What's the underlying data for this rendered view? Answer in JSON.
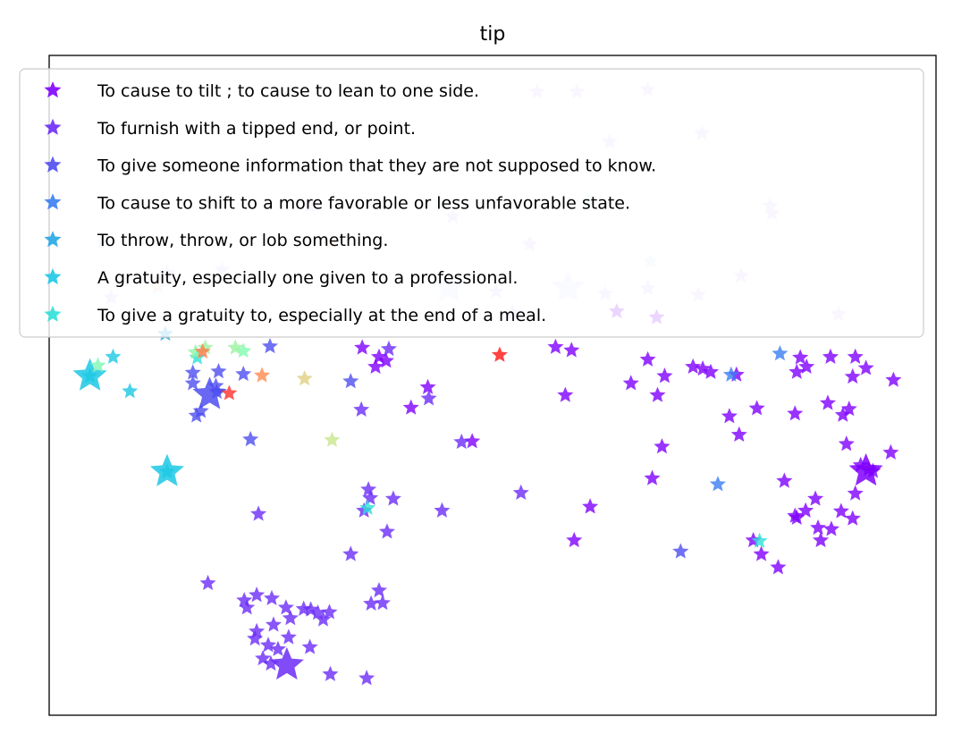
{
  "chart_data": {
    "type": "scatter",
    "title": "tip",
    "xlabel": "",
    "ylabel": "",
    "axis_ticks": false,
    "grid": false,
    "legend_placement": "top",
    "xlim": [
      0,
      100
    ],
    "ylim": [
      0,
      100
    ],
    "series": [
      {
        "name": "To cause to tilt ; to cause to lean to one side.",
        "color": "#8000ff",
        "points": [
          [
            35.3,
            55.7
          ],
          [
            37.2,
            54.3
          ],
          [
            36.8,
            52.8
          ],
          [
            38.0,
            53.7
          ],
          [
            42.7,
            49.7
          ],
          [
            40.8,
            46.6
          ],
          [
            47.7,
            41.5
          ],
          [
            58.9,
            55.3
          ],
          [
            58.2,
            48.5
          ],
          [
            67.5,
            53.9
          ],
          [
            65.6,
            50.3
          ],
          [
            69.4,
            51.4
          ],
          [
            68.6,
            48.5
          ],
          [
            69.1,
            40.7
          ],
          [
            68.0,
            35.9
          ],
          [
            72.6,
            52.8
          ],
          [
            73.7,
            52.5
          ],
          [
            74.6,
            52.0
          ],
          [
            77.5,
            51.6
          ],
          [
            77.8,
            42.5
          ],
          [
            76.7,
            45.3
          ],
          [
            79.8,
            46.5
          ],
          [
            84.3,
            52.0
          ],
          [
            85.4,
            52.8
          ],
          [
            84.7,
            54.2
          ],
          [
            88.1,
            54.3
          ],
          [
            90.9,
            54.3
          ],
          [
            92.1,
            52.6
          ],
          [
            95.2,
            50.8
          ],
          [
            84.1,
            45.7
          ],
          [
            87.8,
            47.3
          ],
          [
            90.6,
            51.3
          ],
          [
            89.5,
            45.5
          ],
          [
            90.2,
            46.4
          ],
          [
            89.9,
            41.1
          ],
          [
            91.5,
            37.9
          ],
          [
            94.9,
            39.8
          ],
          [
            90.9,
            33.6
          ],
          [
            82.9,
            35.5
          ],
          [
            86.4,
            32.8
          ],
          [
            84.3,
            29.9
          ],
          [
            85.3,
            31.0
          ],
          [
            88.2,
            28.2
          ],
          [
            86.7,
            28.4
          ],
          [
            84.1,
            30.2
          ],
          [
            90.6,
            29.8
          ],
          [
            89.3,
            30.9
          ],
          [
            87.0,
            26.5
          ],
          [
            80.3,
            24.4
          ],
          [
            82.2,
            22.4
          ],
          [
            79.4,
            26.5
          ],
          [
            61.0,
            31.6
          ],
          [
            59.2,
            26.5
          ],
          [
            64.0,
            61.2
          ],
          [
            68.5,
            60.3
          ],
          [
            57.1,
            55.8
          ],
          [
            92.4,
            37.3
          ],
          [
            92.9,
            37.0
          ]
        ]
      },
      {
        "name": "To furnish with a tipped end, or point.",
        "color": "#6b2cf7",
        "points": [
          [
            17.9,
            20.0
          ],
          [
            22.0,
            17.4
          ],
          [
            23.4,
            18.2
          ],
          [
            25.1,
            17.7
          ],
          [
            22.3,
            16.3
          ],
          [
            26.7,
            16.3
          ],
          [
            28.7,
            16.1
          ],
          [
            30.3,
            15.5
          ],
          [
            31.6,
            15.6
          ],
          [
            29.5,
            16.0
          ],
          [
            30.9,
            14.5
          ],
          [
            27.2,
            14.7
          ],
          [
            25.3,
            13.7
          ],
          [
            27.0,
            11.8
          ],
          [
            23.4,
            12.7
          ],
          [
            23.2,
            11.6
          ],
          [
            24.7,
            10.6
          ],
          [
            25.8,
            10.0
          ],
          [
            25.0,
            7.8
          ],
          [
            24.1,
            8.6
          ],
          [
            29.4,
            10.3
          ],
          [
            31.7,
            6.2
          ],
          [
            35.8,
            5.6
          ],
          [
            37.2,
            18.9
          ],
          [
            36.3,
            16.9
          ],
          [
            37.6,
            17.0
          ],
          [
            34.0,
            24.4
          ],
          [
            38.1,
            27.8
          ],
          [
            36.2,
            32.9
          ],
          [
            35.5,
            31.0
          ],
          [
            44.3,
            31.0
          ],
          [
            53.2,
            33.7
          ],
          [
            46.5,
            41.4
          ],
          [
            38.3,
            55.5
          ],
          [
            35.2,
            46.3
          ],
          [
            42.8,
            48.0
          ],
          [
            23.6,
            30.5
          ],
          [
            36.0,
            34.2
          ],
          [
            38.8,
            32.8
          ]
        ]
      },
      {
        "name": "To give someone information that they are not supposed to know.",
        "color": "#4e4df0",
        "points": [
          [
            16.2,
            51.9
          ],
          [
            18.8,
            49.9
          ],
          [
            18.9,
            49.0
          ],
          [
            16.2,
            50.3
          ],
          [
            22.7,
            41.8
          ],
          [
            17.1,
            46.1
          ],
          [
            16.6,
            45.4
          ],
          [
            19.1,
            52.1
          ],
          [
            21.9,
            51.7
          ],
          [
            24.9,
            55.9
          ],
          [
            34.0,
            50.6
          ],
          [
            71.2,
            24.8
          ]
        ]
      },
      {
        "name": "To cause to shift to a more favorable or less unfavorable state.",
        "color": "#3a7ef2",
        "points": [
          [
            76.9,
            51.6
          ],
          [
            75.4,
            35.0
          ],
          [
            82.4,
            54.8
          ]
        ]
      },
      {
        "name": "To throw, throw, or lob something.",
        "color": "#26a6e6",
        "points": [
          [
            13.1,
            57.8
          ]
        ]
      },
      {
        "name": "A gratuity, especially one given to a professional.",
        "color": "#1cc8e4",
        "points": [
          [
            7.2,
            54.3
          ],
          [
            4.6,
            51.4
          ],
          [
            9.1,
            49.1
          ],
          [
            13.3,
            36.9
          ]
        ]
      },
      {
        "name": "To give a gratuity to, especially at the end of a meal.",
        "color": "#2ee0d8",
        "points": [
          [
            80.1,
            26.4
          ],
          [
            16.7,
            54.2
          ],
          [
            35.9,
            31.4
          ]
        ]
      },
      {
        "name": "",
        "color": "",
        "points": [
          [
            5.5,
            53.0,
            "#7ef7b4"
          ],
          [
            16.5,
            55.0,
            "#8ef5a6"
          ],
          [
            21.9,
            55.2,
            "#80fcb0"
          ],
          [
            21.0,
            55.7,
            "#9af3a0"
          ],
          [
            17.6,
            55.7,
            "#9ef0a0"
          ],
          [
            31.9,
            41.7,
            "#c8e68e"
          ],
          [
            28.8,
            51.0,
            "#e0d080"
          ],
          [
            17.3,
            55.1,
            "#ff7a48"
          ],
          [
            24.0,
            51.5,
            "#ff8a50"
          ],
          [
            20.3,
            48.8,
            "#ff3030"
          ],
          [
            50.8,
            54.6,
            "#ff1414"
          ]
        ]
      }
    ],
    "large_markers": [
      [
        4.6,
        51.4,
        "#1cc8e4"
      ],
      [
        13.3,
        36.9,
        "#1cc8e4"
      ],
      [
        18.1,
        48.6,
        "#4e4df0"
      ],
      [
        92.1,
        37.0,
        "#8000ff"
      ],
      [
        26.8,
        7.6,
        "#6b2cf7"
      ],
      [
        45.1,
        64.8,
        "#d8e6ff"
      ],
      [
        58.5,
        64.8,
        "#d8e6ff"
      ]
    ],
    "faded_points": [
      [
        63.2,
        86.9,
        "#e6d0ff"
      ],
      [
        67.5,
        94.8,
        "#e6d0ff"
      ],
      [
        73.6,
        88.2,
        "#e6d0ff"
      ],
      [
        55.0,
        94.5,
        "#e6d0ff"
      ],
      [
        59.5,
        94.5,
        "#e6d0ff"
      ],
      [
        29.4,
        77.2,
        "#e6d0ff"
      ],
      [
        45.5,
        75.6,
        "#e6d0ff"
      ],
      [
        54.2,
        71.4,
        "#e6d0ff"
      ],
      [
        81.3,
        77.2,
        "#e6d0ff"
      ],
      [
        81.5,
        76.1,
        "#e6d0ff"
      ],
      [
        78.0,
        66.6,
        "#e6d0ff"
      ],
      [
        62.7,
        63.9,
        "#e6d0ff"
      ],
      [
        67.5,
        64.7,
        "#e6d0ff"
      ],
      [
        73.2,
        63.7,
        "#e6d0ff"
      ],
      [
        89.0,
        60.8,
        "#e6d0ff"
      ],
      [
        7.0,
        63.3,
        "#e6d0ff"
      ],
      [
        12.6,
        66.1,
        "#e6d0ff"
      ],
      [
        19.5,
        67.5,
        "#e6d0ff"
      ],
      [
        13.3,
        67.0,
        "#e6d0ff"
      ],
      [
        50.4,
        64.2,
        "#e6d0ff"
      ],
      [
        52.2,
        61.0,
        "#e6d0ff"
      ],
      [
        60.8,
        78.0,
        "#e0fff4"
      ],
      [
        67.8,
        68.8,
        "#dff0ff"
      ],
      [
        44.1,
        77.8,
        "#dff0ff"
      ],
      [
        6.0,
        71.6,
        "#dff0ff"
      ],
      [
        12.3,
        64.8,
        "#dff0ff"
      ],
      [
        31.8,
        71.6,
        "#ffe0d0"
      ],
      [
        12.2,
        65.0,
        "#ffe0d0"
      ]
    ]
  }
}
